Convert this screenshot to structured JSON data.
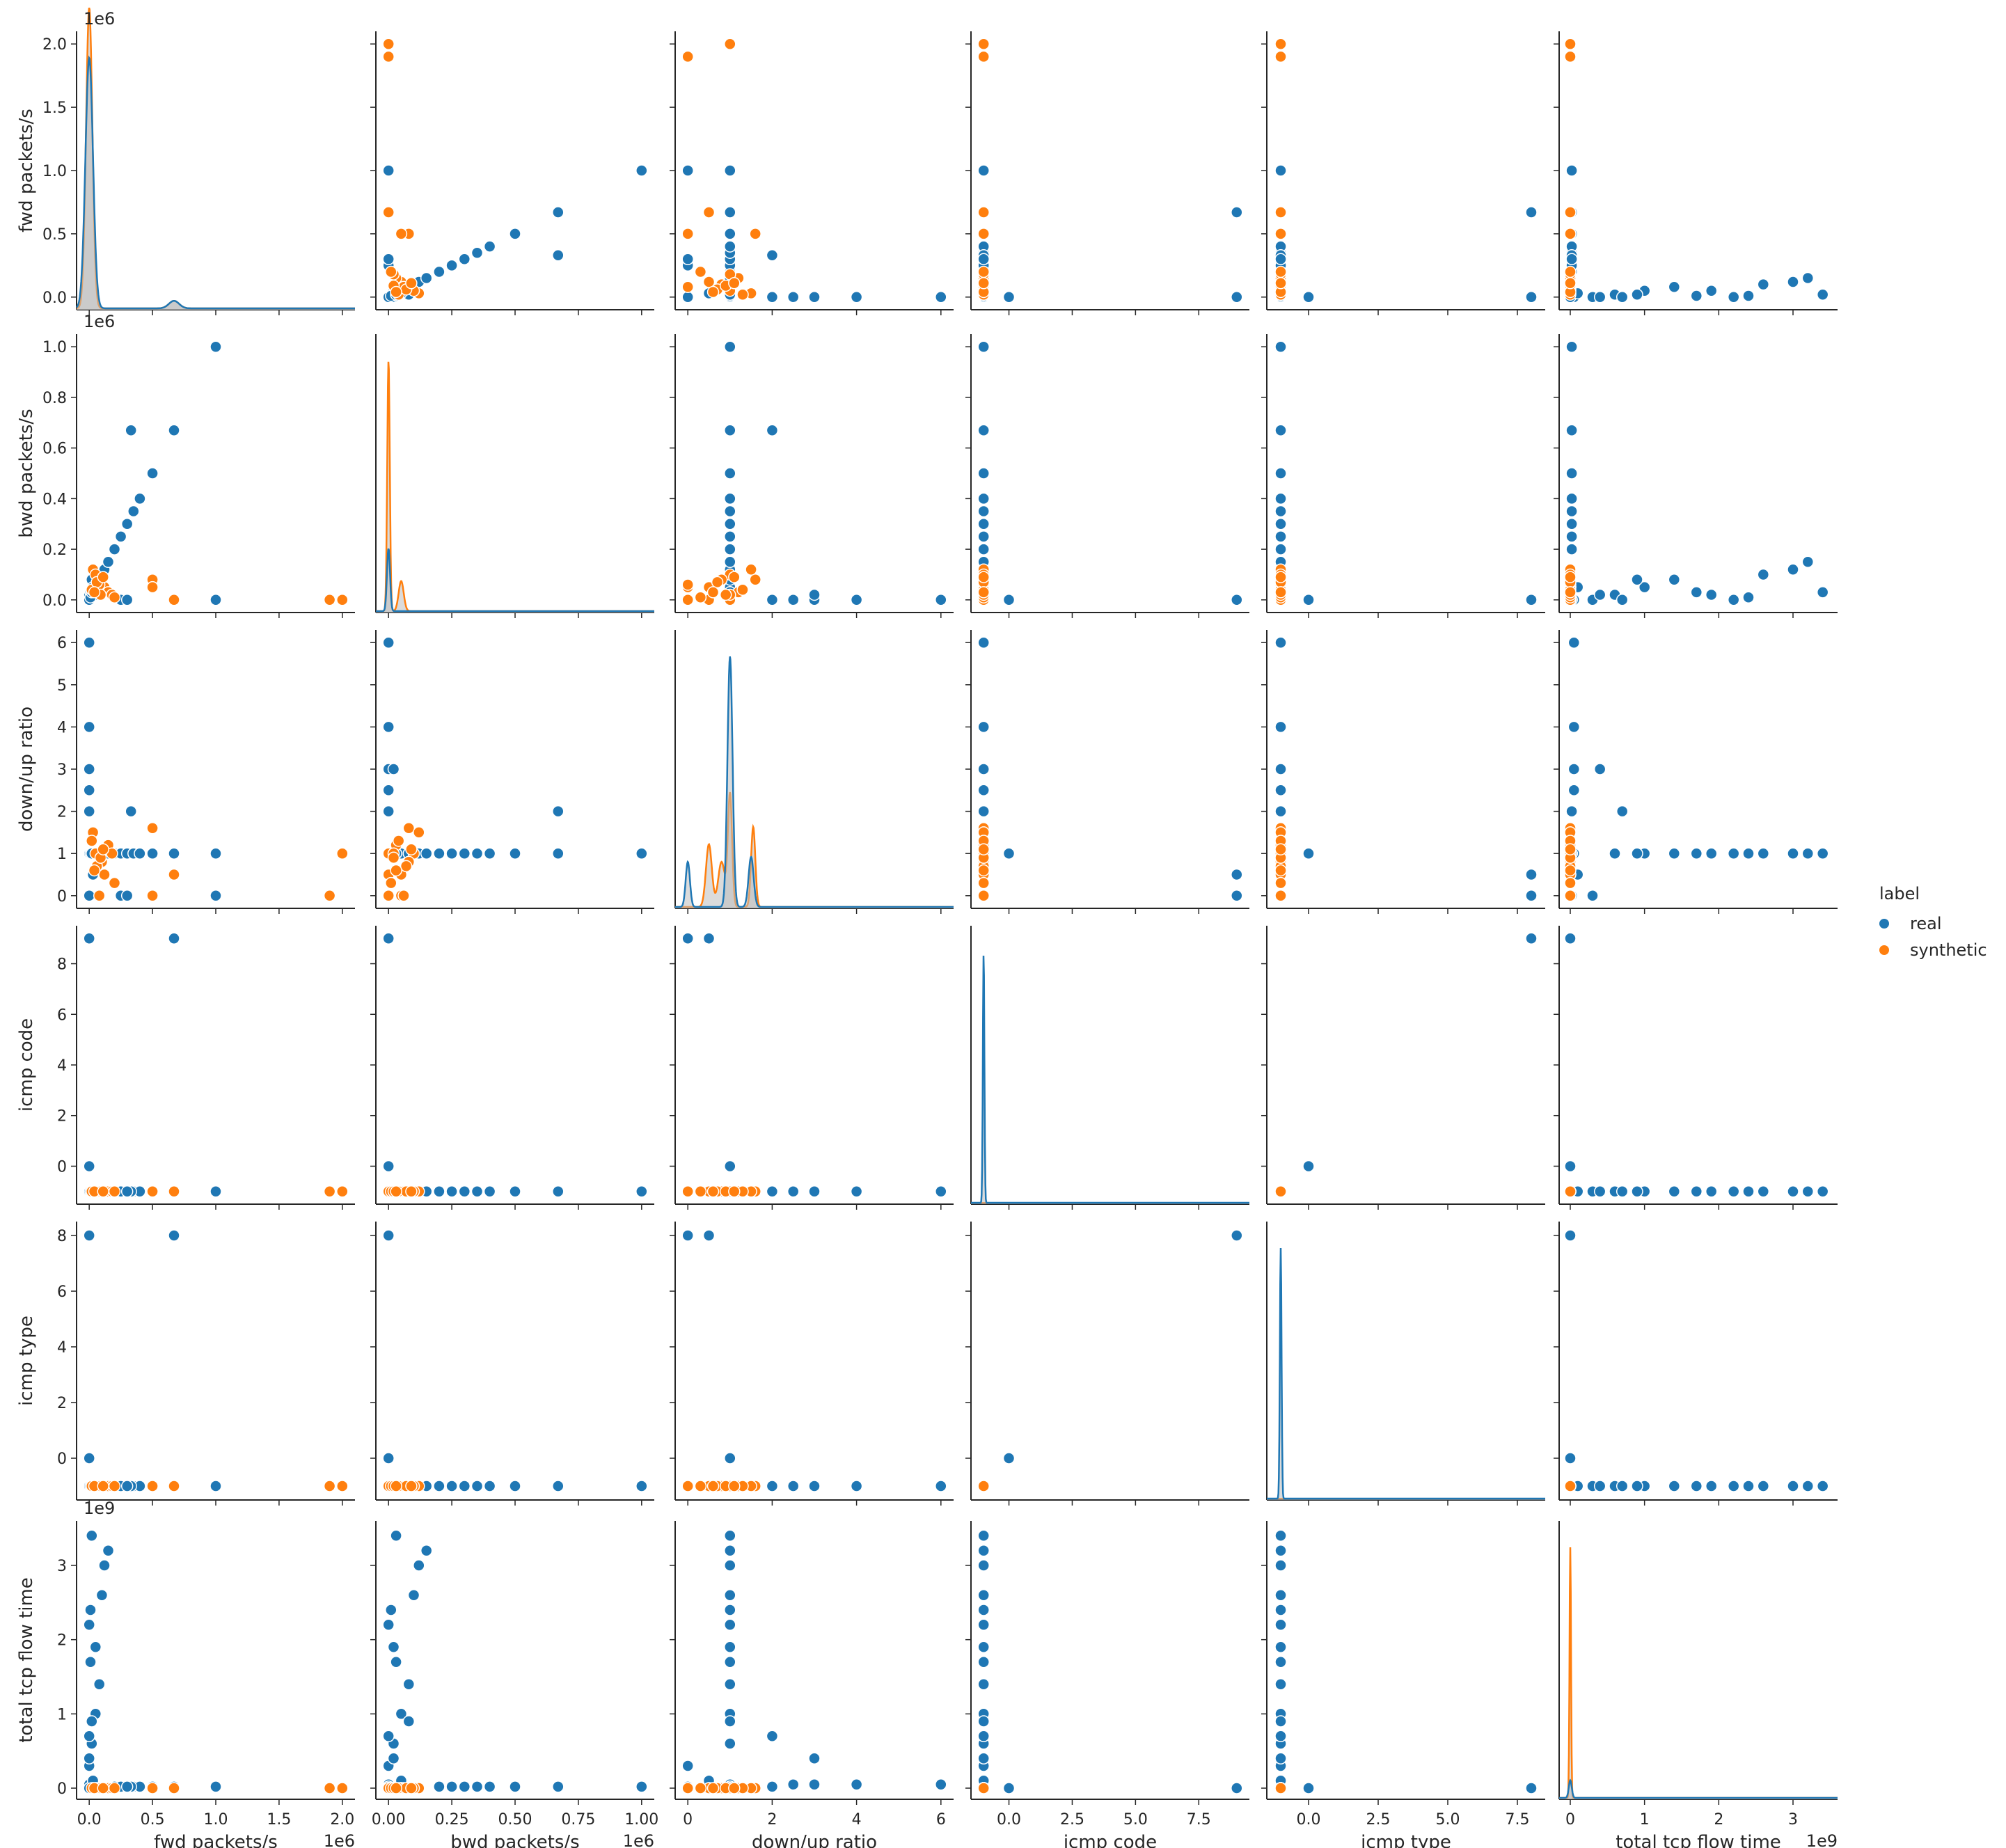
{
  "chart_data": {
    "type": "scatter",
    "subtype": "pairplot",
    "variables": [
      "fwd packets/s",
      "bwd packets/s",
      "down/up ratio",
      "icmp code",
      "icmp type",
      "total tcp flow time"
    ],
    "hue": "label",
    "legend": {
      "title": "label",
      "placement": "right",
      "entries": [
        {
          "name": "real",
          "color": "#1f77b4"
        },
        {
          "name": "synthetic",
          "color": "#ff7f0e"
        }
      ]
    },
    "colors": {
      "real": "#1f77b4",
      "synthetic": "#ff7f0e",
      "axes": "#262626",
      "kde_fill": "#bdbdbd"
    },
    "axes": [
      {
        "name": "fwd packets/s",
        "range": [
          -0.1,
          2.1
        ],
        "ticks": [
          0.0,
          0.5,
          1.0,
          1.5,
          2.0
        ],
        "tick_labels": [
          "0.0",
          "0.5",
          "1.0",
          "1.5",
          "2.0"
        ],
        "offset_label": "1e6"
      },
      {
        "name": "bwd packets/s",
        "range": [
          -0.05,
          1.05
        ],
        "ticks": [
          0.0,
          0.2,
          0.4,
          0.6,
          0.8,
          1.0
        ],
        "tick_labels": [
          "0.0",
          "0.2",
          "0.4",
          "0.6",
          "0.8",
          "1.0"
        ],
        "x_ticks": [
          0.0,
          0.25,
          0.5,
          0.75,
          1.0
        ],
        "x_tick_labels": [
          "0.00",
          "0.25",
          "0.50",
          "0.75",
          "1.00"
        ],
        "offset_label": "1e6"
      },
      {
        "name": "down/up ratio",
        "range": [
          -0.3,
          6.3
        ],
        "ticks": [
          0,
          1,
          2,
          3,
          4,
          5,
          6
        ],
        "tick_labels": [
          "0",
          "1",
          "2",
          "3",
          "4",
          "5",
          "6"
        ],
        "x_ticks": [
          0,
          2,
          4,
          6
        ],
        "x_tick_labels": [
          "0",
          "2",
          "4",
          "6"
        ]
      },
      {
        "name": "icmp code",
        "range": [
          -1.5,
          9.5
        ],
        "ticks": [
          0,
          2,
          4,
          6,
          8
        ],
        "tick_labels": [
          "0",
          "2",
          "4",
          "6",
          "8"
        ],
        "x_ticks": [
          0.0,
          2.5,
          5.0,
          7.5
        ],
        "x_tick_labels": [
          "0.0",
          "2.5",
          "5.0",
          "7.5"
        ]
      },
      {
        "name": "icmp type",
        "range": [
          -1.5,
          8.5
        ],
        "ticks": [
          0,
          2,
          4,
          6,
          8
        ],
        "tick_labels": [
          "0",
          "2",
          "4",
          "6",
          "8"
        ],
        "x_ticks": [
          0.0,
          2.5,
          5.0,
          7.5
        ],
        "x_tick_labels": [
          "0.0",
          "2.5",
          "5.0",
          "7.5"
        ]
      },
      {
        "name": "total tcp flow time",
        "range": [
          -0.15,
          3.6
        ],
        "ticks": [
          0,
          1,
          2,
          3
        ],
        "tick_labels": [
          "0",
          "1",
          "2",
          "3"
        ],
        "offset_label": "1e9"
      }
    ],
    "records": {
      "real": [
        [
          0,
          0,
          1,
          -1,
          -1,
          0.05
        ],
        [
          0,
          0,
          0,
          -1,
          -1,
          0.3
        ],
        [
          0.02,
          0.02,
          1,
          -1,
          -1,
          0.6
        ],
        [
          0.05,
          0.05,
          1,
          -1,
          -1,
          1.0
        ],
        [
          0.08,
          0.08,
          1,
          -1,
          -1,
          1.4
        ],
        [
          0.1,
          0.1,
          1,
          -1,
          -1,
          2.6
        ],
        [
          0.12,
          0.12,
          1,
          -1,
          -1,
          3.0
        ],
        [
          0.15,
          0.15,
          1,
          -1,
          -1,
          3.2
        ],
        [
          0,
          0,
          1,
          -1,
          -1,
          2.2
        ],
        [
          0.2,
          0.2,
          1,
          -1,
          -1,
          0.02
        ],
        [
          0.25,
          0.25,
          1,
          -1,
          -1,
          0.02
        ],
        [
          0.3,
          0.3,
          1,
          -1,
          -1,
          0.02
        ],
        [
          0.35,
          0.35,
          1,
          -1,
          -1,
          0.02
        ],
        [
          0.4,
          0.4,
          1,
          -1,
          -1,
          0.02
        ],
        [
          0.5,
          0.5,
          1,
          -1,
          -1,
          0.02
        ],
        [
          0.67,
          0.67,
          1,
          -1,
          -1,
          0.02
        ],
        [
          0.33,
          0.67,
          2,
          -1,
          -1,
          0.02
        ],
        [
          1.0,
          1.0,
          1,
          -1,
          -1,
          0.02
        ],
        [
          1.0,
          0,
          0,
          -1,
          -1,
          0.02
        ],
        [
          0,
          0,
          6,
          -1,
          -1,
          0.05
        ],
        [
          0,
          0,
          4,
          -1,
          -1,
          0.05
        ],
        [
          0,
          0,
          3,
          -1,
          -1,
          0.05
        ],
        [
          0,
          0,
          2.5,
          -1,
          -1,
          0.05
        ],
        [
          0,
          0,
          2,
          -1,
          -1,
          0.7
        ],
        [
          0,
          0.02,
          3,
          -1,
          -1,
          0.4
        ],
        [
          0.25,
          0,
          0,
          -1,
          -1,
          0.02
        ],
        [
          0.3,
          0,
          0,
          -1,
          -1,
          0.02
        ],
        [
          0,
          0,
          0,
          9,
          8,
          0.0
        ],
        [
          0.67,
          0,
          0.5,
          9,
          8,
          0.0
        ],
        [
          0,
          0,
          1,
          0,
          0,
          0.0
        ],
        [
          0.02,
          0.08,
          1,
          -1,
          -1,
          0.9
        ],
        [
          0.03,
          0.05,
          0.5,
          -1,
          -1,
          0.1
        ],
        [
          0.01,
          0.03,
          1,
          -1,
          -1,
          1.7
        ],
        [
          0.05,
          0.02,
          1,
          -1,
          -1,
          1.9
        ],
        [
          0.01,
          0.01,
          1,
          -1,
          -1,
          2.4
        ],
        [
          0.02,
          0.03,
          1,
          -1,
          -1,
          3.4
        ]
      ],
      "synthetic": [
        [
          2.0,
          0,
          1,
          -1,
          -1,
          0.0
        ],
        [
          1.9,
          0,
          0,
          -1,
          -1,
          0.0
        ],
        [
          0.67,
          0,
          0.5,
          -1,
          -1,
          0.0
        ],
        [
          0.5,
          0.08,
          1.6,
          -1,
          -1,
          0.0
        ],
        [
          0.5,
          0.05,
          0,
          -1,
          -1,
          0.0
        ],
        [
          0.03,
          0.12,
          1.5,
          -1,
          -1,
          0.0
        ],
        [
          0.05,
          0.1,
          1,
          -1,
          -1,
          0.0
        ],
        [
          0.1,
          0.08,
          0.8,
          -1,
          -1,
          0.0
        ],
        [
          0.12,
          0.05,
          0.5,
          -1,
          -1,
          0.0
        ],
        [
          0.15,
          0.03,
          1.2,
          -1,
          -1,
          0.0
        ],
        [
          0.18,
          0.02,
          1.0,
          -1,
          -1,
          0.0
        ],
        [
          0.2,
          0.01,
          0.3,
          -1,
          -1,
          0.0
        ],
        [
          0.08,
          0.06,
          0,
          -1,
          -1,
          0.0
        ],
        [
          0.02,
          0.04,
          1.3,
          -1,
          -1,
          0.0
        ],
        [
          0.06,
          0.07,
          0.7,
          -1,
          -1,
          0.0
        ],
        [
          0.09,
          0.02,
          0.9,
          -1,
          -1,
          0.0
        ],
        [
          0.04,
          0.03,
          0.6,
          -1,
          -1,
          0.0
        ],
        [
          0.11,
          0.09,
          1.1,
          -1,
          -1,
          0.0
        ]
      ]
    },
    "diagonal_kde": {
      "x_min": [
        -0.1,
        -0.05,
        -0.3,
        -1.5,
        -1.5,
        -0.15
      ],
      "x_max": [
        2.1,
        1.05,
        6.3,
        9.5,
        8.5,
        3.6
      ],
      "real": [
        [
          [
            0,
            1.0,
            0.03
          ],
          [
            0.67,
            0.03,
            0.04
          ]
        ],
        [
          [
            0,
            0.25,
            0.006
          ]
        ],
        [
          [
            0,
            0.18,
            0.05
          ],
          [
            1.0,
            1.0,
            0.06
          ],
          [
            1.5,
            0.2,
            0.06
          ]
        ],
        [
          [
            -1,
            1.0,
            0.03
          ]
        ],
        [
          [
            -1,
            1.0,
            0.03
          ]
        ],
        [
          [
            0,
            0.07,
            0.02
          ]
        ]
      ],
      "synthetic": [
        [
          [
            0,
            1.2,
            0.025
          ],
          [
            0.67,
            0.03,
            0.04
          ]
        ],
        [
          [
            0,
            1.0,
            0.005
          ],
          [
            0.05,
            0.12,
            0.01
          ]
        ],
        [
          [
            0.5,
            0.25,
            0.07
          ],
          [
            0.8,
            0.18,
            0.08
          ],
          [
            1.0,
            0.45,
            0.05
          ],
          [
            1.55,
            0.32,
            0.05
          ]
        ],
        [],
        [],
        [
          [
            0,
            1.0,
            0.01
          ]
        ]
      ]
    }
  }
}
